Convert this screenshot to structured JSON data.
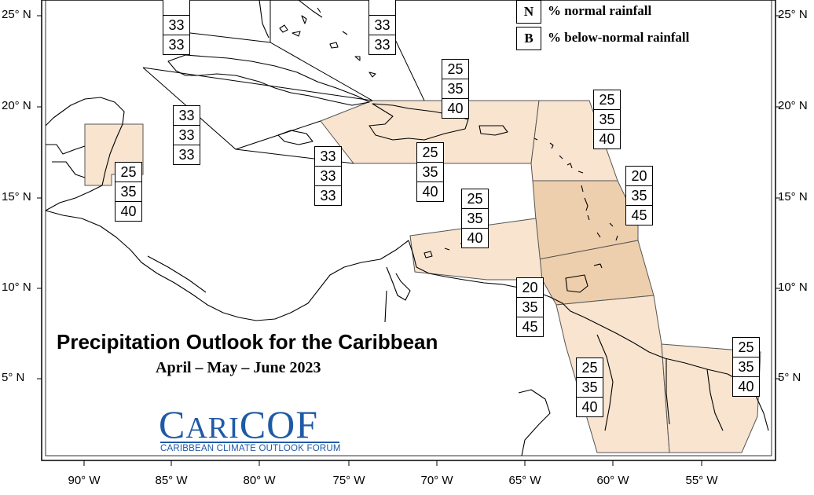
{
  "title": "Precipitation Outlook for the Caribbean",
  "subtitle": "April – May – June 2023",
  "legend": [
    {
      "key": "N",
      "label": "% normal rainfall"
    },
    {
      "key": "B",
      "label": "% below-normal rainfall"
    }
  ],
  "logo": {
    "name": "CariCOF",
    "tagline": "CARIBBEAN CLIMATE OUTLOOK FORUM"
  },
  "latitude_labels": [
    "25° N",
    "20° N",
    "15° N",
    "10° N",
    "5° N"
  ],
  "longitude_labels": [
    "90° W",
    "85° W",
    "80° W",
    "75° W",
    "70° W",
    "65° W",
    "60° W",
    "55° W"
  ],
  "colors": {
    "light_fill": "#f8e4cf",
    "dark_fill": "#eecfad",
    "coast": "#000000",
    "logo_blue": "#1f5aa6"
  },
  "regions": [
    {
      "id": "bahamas-north-west",
      "values": [
        "",
        "33",
        "33"
      ]
    },
    {
      "id": "bahamas-north-east",
      "values": [
        "",
        "33",
        "33"
      ]
    },
    {
      "id": "cuba-cayman",
      "values": [
        "33",
        "33",
        "33"
      ]
    },
    {
      "id": "jamaica",
      "values": [
        "33",
        "33",
        "33"
      ]
    },
    {
      "id": "belize",
      "values": [
        "25",
        "35",
        "40"
      ]
    },
    {
      "id": "greater-antilles-east",
      "values": [
        "25",
        "35",
        "40"
      ]
    },
    {
      "id": "hispaniola-south",
      "values": [
        "25",
        "35",
        "40"
      ]
    },
    {
      "id": "northern-leeward-islands",
      "values": [
        "25",
        "35",
        "40"
      ]
    },
    {
      "id": "windward-islands",
      "values": [
        "20",
        "35",
        "45"
      ]
    },
    {
      "id": "abc-islands",
      "values": [
        "25",
        "35",
        "40"
      ]
    },
    {
      "id": "trinidad-tobago",
      "values": [
        "20",
        "35",
        "45"
      ]
    },
    {
      "id": "guyana",
      "values": [
        "25",
        "35",
        "40"
      ]
    },
    {
      "id": "suriname-french-guiana",
      "values": [
        "25",
        "35",
        "40"
      ]
    }
  ]
}
